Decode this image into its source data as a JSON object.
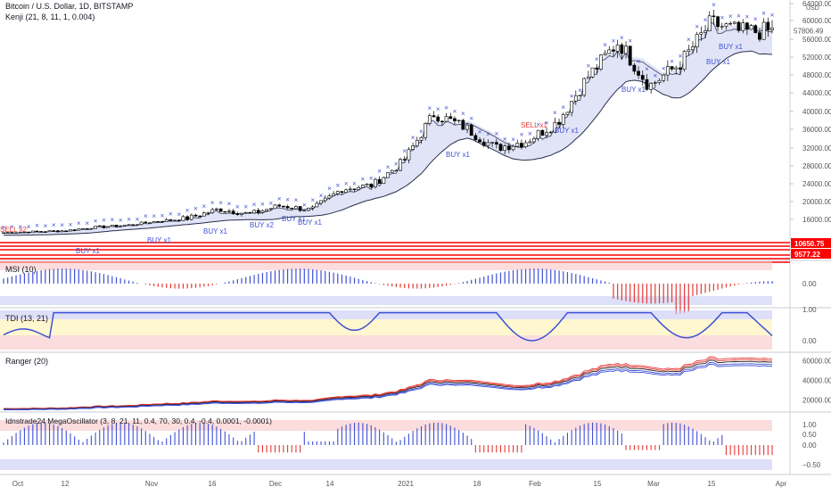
{
  "header": {
    "title": "Bitcoin / U.S. Dollar, 1D, BITSTAMP",
    "indicator": "Kenji (21, 8, 11, 1, 0.004)",
    "price_axis_unit": "USD"
  },
  "price_tags": {
    "last_price": "57806.49",
    "level_high": "10650.75",
    "level_low": "9577.22"
  },
  "panes": {
    "msi": "MSI (10)",
    "tdi": "TDI (13, 21)",
    "ranger": "Ranger (20)",
    "osc": "Idnstrade24 MegaOscillator (3, 8, 21, 11, 0.4, 70, 30, 0.4, -0.4, 0.0001, -0.0001)"
  },
  "x_ticks": [
    "Oct",
    "12",
    "Nov",
    "16",
    "Dec",
    "14",
    "2021",
    "18",
    "Feb",
    "15",
    "Mar",
    "15",
    "Apr"
  ],
  "colors": {
    "up": "#ffffff",
    "down": "#000000",
    "band_fill": "#c9cdf0",
    "band_line": "#2a2e4a",
    "blue": "#3f51d6",
    "red": "#e53935",
    "green": "#2e7d32",
    "level_red": "#ff0000"
  },
  "chart_data": [
    {
      "type": "candlestick",
      "pane": "main",
      "y_ticks": [
        16000,
        20000,
        24000,
        28000,
        32000,
        36000,
        40000,
        44000,
        48000,
        52000,
        56000,
        60000,
        64000
      ],
      "ylim": [
        9000,
        64500
      ],
      "x": [
        "2020-10-01",
        "2020-10-08",
        "2020-10-15",
        "2020-10-22",
        "2020-10-29",
        "2020-11-05",
        "2020-11-12",
        "2020-11-19",
        "2020-11-26",
        "2020-12-03",
        "2020-12-10",
        "2020-12-17",
        "2020-12-24",
        "2020-12-31",
        "2021-01-07",
        "2021-01-14",
        "2021-01-21",
        "2021-01-28",
        "2021-02-04",
        "2021-02-11",
        "2021-02-18",
        "2021-02-25",
        "2021-03-04",
        "2021-03-11",
        "2021-03-18",
        "2021-03-25"
      ],
      "close": [
        10600,
        11000,
        11400,
        12900,
        13600,
        15300,
        16300,
        18300,
        17200,
        19100,
        18100,
        22800,
        23700,
        29000,
        39500,
        36500,
        32000,
        33500,
        37500,
        47500,
        55500,
        45500,
        50500,
        59500,
        57500,
        57800
      ],
      "support_levels": [
        10650.75,
        9577.22
      ]
    },
    {
      "type": "histogram",
      "pane": "MSI (10)",
      "y_ticks": [
        0.0
      ],
      "label": "0.00"
    },
    {
      "type": "line",
      "pane": "TDI (13, 21)",
      "y_ticks": [
        1.0,
        0.0
      ],
      "tick_labels": [
        "1.00",
        "0.00"
      ]
    },
    {
      "type": "line",
      "pane": "Ranger (20)",
      "y_ticks": [
        60000,
        40000,
        20000
      ],
      "tick_labels": [
        "60000.00",
        "40000.00",
        "20000.00"
      ]
    },
    {
      "type": "histogram",
      "pane": "MegaOscillator",
      "y_ticks": [
        1.0,
        0.5,
        0.0,
        -0.5
      ],
      "tick_labels": [
        "1.00",
        "0.50",
        "0.00",
        "−0.50"
      ]
    }
  ],
  "signals": {
    "buy": "BUY x1",
    "buy2": "BUY x2",
    "sell": "SELL x1",
    "sell2": "SELL x2"
  }
}
